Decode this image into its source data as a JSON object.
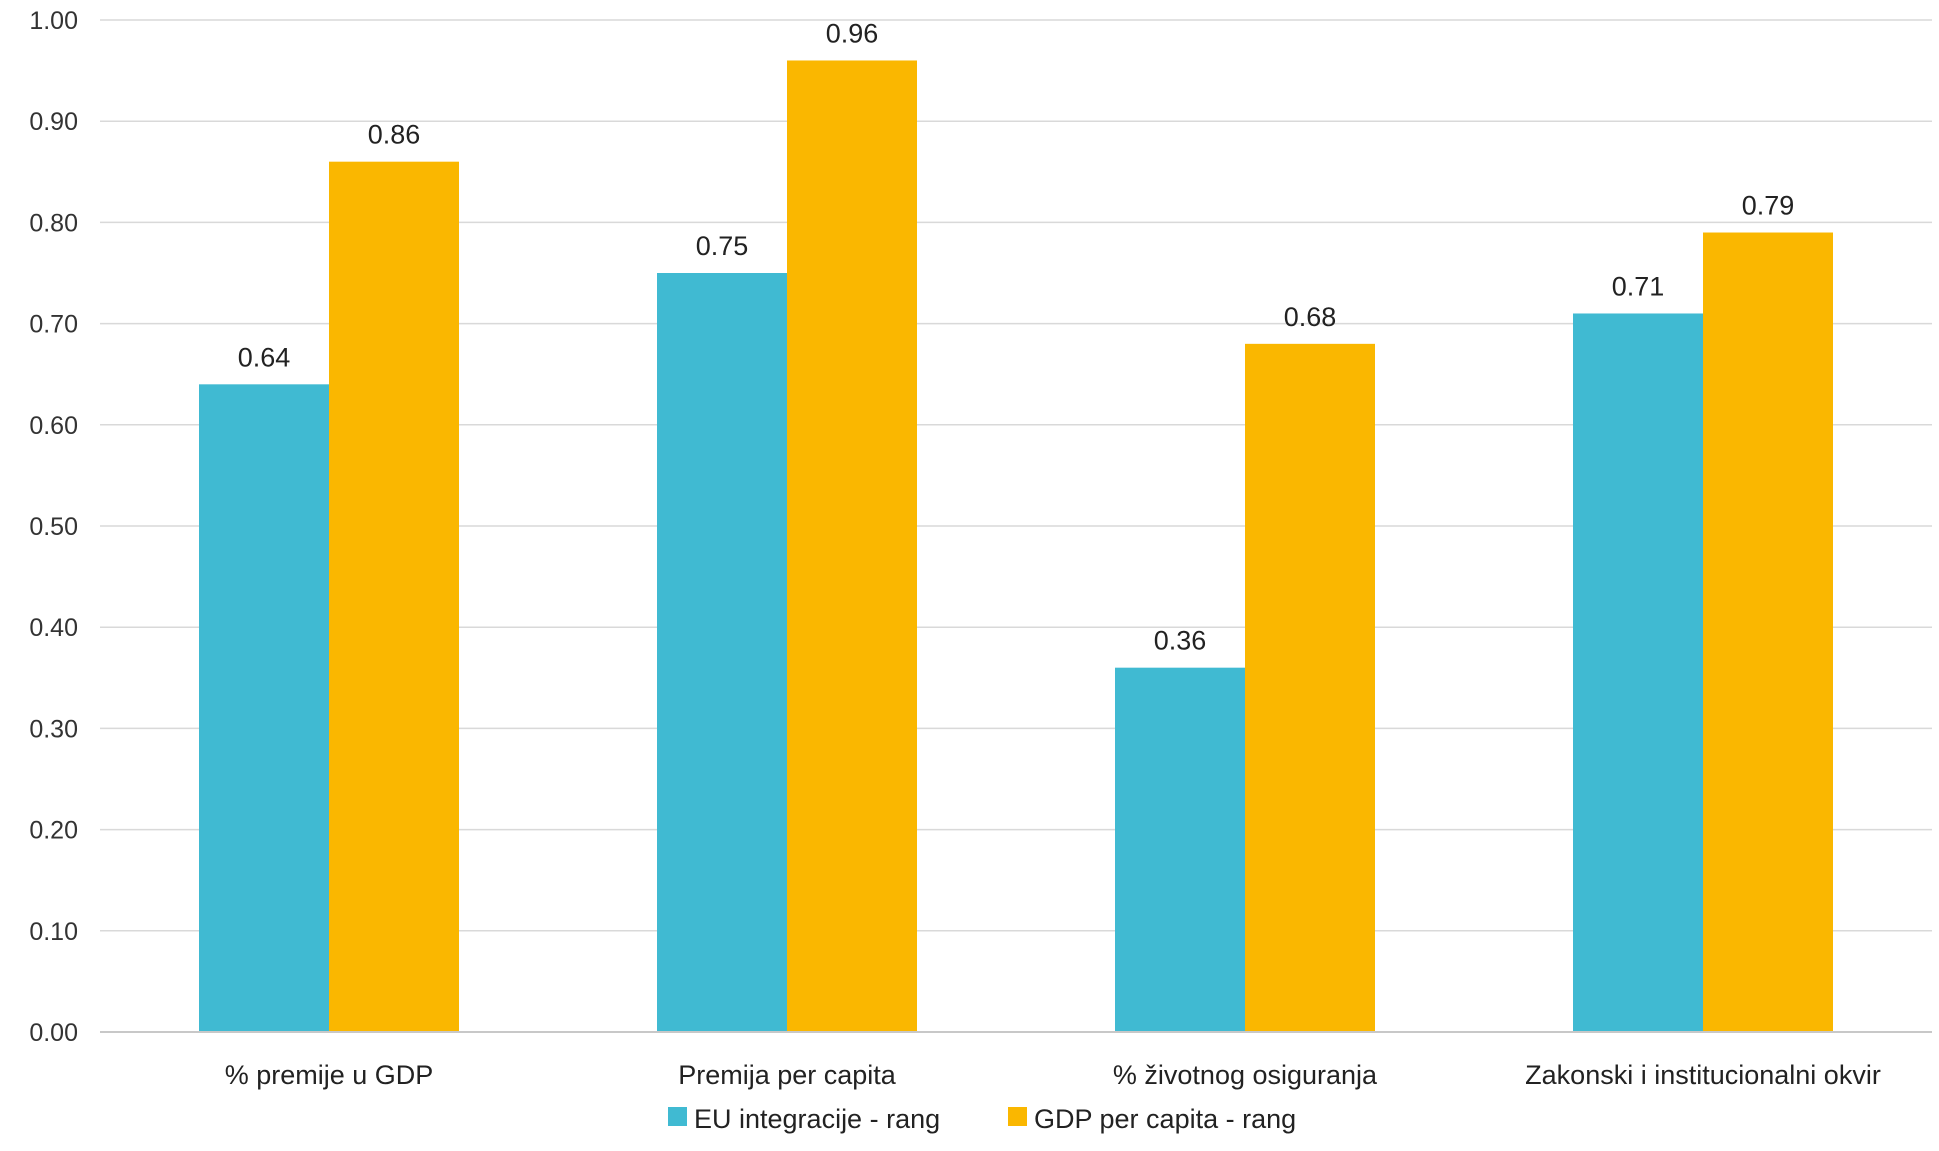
{
  "chart_data": {
    "type": "bar",
    "title": "",
    "xlabel": "",
    "ylabel": "",
    "categories": [
      "% premije u GDP",
      "Premija per capita",
      "% životnog osiguranja",
      "Zakonski i institucionalni okvir"
    ],
    "series": [
      {
        "name": "EU integracije - rang",
        "color": "#40BAD2",
        "values": [
          0.64,
          0.75,
          0.36,
          0.71
        ],
        "labels": [
          "0.64",
          "0.75",
          "0.36",
          "0.71"
        ]
      },
      {
        "name": "GDP per capita - rang",
        "color": "#FAB700",
        "values": [
          0.86,
          0.96,
          0.68,
          0.79
        ],
        "labels": [
          "0.86",
          "0.96",
          "0.68",
          "0.79"
        ]
      }
    ],
    "ylim": [
      0,
      1
    ],
    "yticks": [
      "0.00",
      "0.10",
      "0.20",
      "0.30",
      "0.40",
      "0.50",
      "0.60",
      "0.70",
      "0.80",
      "0.90",
      "1.00"
    ],
    "grid": true,
    "legend_position": "bottom"
  }
}
